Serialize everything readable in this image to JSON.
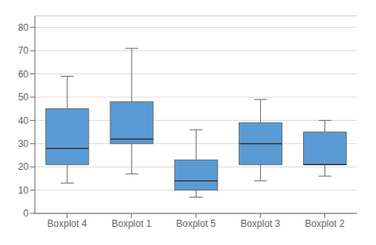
{
  "chart_data": {
    "type": "box",
    "categories": [
      "Boxplot 4",
      "Boxplot 1",
      "Boxplot 5",
      "Boxplot 3",
      "Boxplot 2"
    ],
    "whisker_low": [
      13,
      17,
      7,
      14,
      16
    ],
    "q1": [
      21,
      30,
      10,
      21,
      21
    ],
    "median": [
      28,
      32,
      14,
      30,
      21
    ],
    "q3": [
      45,
      48,
      23,
      39,
      35
    ],
    "whisker_high": [
      59,
      71,
      36,
      49,
      40
    ],
    "color": "#5B9BD5",
    "ylim": [
      0,
      85
    ],
    "yticks": [
      0,
      10,
      20,
      30,
      40,
      50,
      60,
      70,
      80
    ],
    "grid": true
  }
}
